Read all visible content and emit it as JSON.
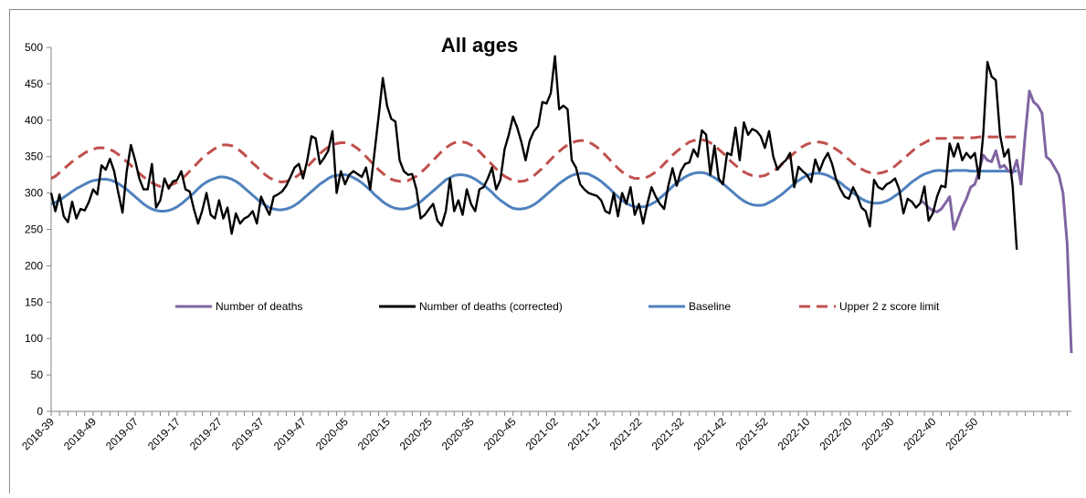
{
  "chart_data": {
    "type": "line",
    "title": "All ages",
    "xlabel": "",
    "ylabel": "",
    "ylim": [
      0,
      500
    ],
    "yticks": [
      0,
      50,
      100,
      150,
      200,
      250,
      300,
      350,
      400,
      450,
      500
    ],
    "grid": false,
    "legend_placement": "center",
    "xtick_labels": [
      "2018-39",
      "2018-49",
      "2019-07",
      "2019-17",
      "2019-27",
      "2019-37",
      "2019-47",
      "2020-05",
      "2020-15",
      "2020-25",
      "2020-35",
      "2020-45",
      "2021-02",
      "2021-12",
      "2021-22",
      "2021-32",
      "2021-42",
      "2021-52",
      "2022-10",
      "2022-20",
      "2022-30",
      "2022-40",
      "2022-50"
    ],
    "series": [
      {
        "name": "Number of deaths",
        "color": "#8064a2",
        "style": "solid",
        "start_index": 207,
        "values": [
          290,
          286,
          280,
          276,
          274,
          278,
          286,
          295,
          250,
          265,
          280,
          292,
          308,
          312,
          330,
          352,
          345,
          343,
          358,
          335,
          338,
          330,
          328,
          345,
          312,
          380,
          440,
          425,
          420,
          410,
          350,
          345,
          335,
          325,
          300,
          230,
          80
        ]
      },
      {
        "name": "Number of deaths (corrected)",
        "color": "#000000",
        "style": "solid",
        "start_index": 0,
        "values": [
          300,
          275,
          298,
          268,
          260,
          288,
          265,
          278,
          276,
          288,
          305,
          298,
          338,
          332,
          347,
          330,
          300,
          273,
          330,
          366,
          345,
          320,
          305,
          305,
          340,
          280,
          290,
          320,
          306,
          316,
          318,
          330,
          305,
          302,
          278,
          258,
          276,
          300,
          270,
          265,
          290,
          265,
          280,
          244,
          272,
          258,
          265,
          268,
          275,
          258,
          295,
          282,
          270,
          295,
          298,
          302,
          310,
          322,
          335,
          340,
          320,
          345,
          378,
          375,
          340,
          348,
          358,
          385,
          300,
          330,
          312,
          325,
          330,
          326,
          322,
          335,
          305,
          355,
          405,
          458,
          420,
          402,
          398,
          345,
          330,
          325,
          326,
          305,
          265,
          270,
          278,
          285,
          262,
          255,
          275,
          320,
          275,
          290,
          270,
          305,
          285,
          275,
          305,
          308,
          320,
          335,
          305,
          318,
          360,
          380,
          405,
          390,
          370,
          345,
          372,
          385,
          392,
          425,
          423,
          437,
          488,
          415,
          420,
          415,
          345,
          335,
          312,
          305,
          300,
          298,
          296,
          290,
          275,
          272,
          300,
          268,
          300,
          285,
          308,
          270,
          285,
          258,
          285,
          308,
          295,
          285,
          278,
          310,
          334,
          310,
          330,
          340,
          342,
          360,
          350,
          386,
          380,
          325,
          365,
          320,
          312,
          355,
          352,
          390,
          345,
          397,
          380,
          388,
          385,
          378,
          362,
          385,
          350,
          332,
          340,
          345,
          355,
          308,
          336,
          330,
          325,
          315,
          346,
          330,
          345,
          355,
          340,
          318,
          305,
          295,
          292,
          308,
          296,
          280,
          275,
          254,
          318,
          308,
          305,
          312,
          315,
          320,
          305,
          272,
          292,
          288,
          280,
          286,
          309,
          262,
          272,
          295,
          310,
          308,
          368,
          350,
          368,
          345,
          355,
          348,
          355,
          320,
          380,
          480,
          460,
          455,
          380,
          350,
          360,
          310,
          222
        ]
      },
      {
        "name": "Baseline",
        "color": "#4f81bd",
        "style": "solid",
        "start_index": 0,
        "values": [
          285,
          287,
          290,
          294,
          298,
          302,
          306,
          309,
          312,
          315,
          317,
          318,
          319,
          319,
          318,
          316,
          313,
          309,
          305,
          300,
          295,
          290,
          285,
          281,
          278,
          276,
          275,
          275,
          276,
          278,
          281,
          285,
          290,
          295,
          300,
          306,
          311,
          315,
          318,
          320,
          322,
          322,
          321,
          319,
          316,
          312,
          307,
          302,
          297,
          292,
          287,
          283,
          280,
          278,
          277,
          277,
          278,
          280,
          283,
          287,
          292,
          297,
          302,
          307,
          312,
          316,
          320,
          323,
          324,
          325,
          325,
          324,
          321,
          318,
          314,
          309,
          304,
          298,
          293,
          288,
          284,
          281,
          279,
          278,
          278,
          279,
          281,
          284,
          288,
          293,
          298,
          303,
          308,
          313,
          318,
          321,
          324,
          325,
          325,
          324,
          322,
          319,
          315,
          311,
          306,
          301,
          295,
          290,
          286,
          282,
          279,
          278,
          278,
          279,
          281,
          284,
          288,
          293,
          298,
          303,
          308,
          313,
          317,
          321,
          324,
          326,
          327,
          327,
          326,
          323,
          320,
          316,
          311,
          306,
          300,
          295,
          290,
          286,
          283,
          281,
          281,
          281,
          282,
          285,
          288,
          293,
          298,
          303,
          309,
          314,
          318,
          322,
          325,
          327,
          328,
          328,
          327,
          324,
          321,
          317,
          313,
          308,
          303,
          298,
          293,
          289,
          286,
          284,
          283,
          283,
          284,
          287,
          290,
          294,
          298,
          303,
          308,
          313,
          317,
          321,
          324,
          326,
          327,
          327,
          326,
          324,
          321,
          318,
          314,
          309,
          305,
          300,
          296,
          292,
          289,
          287,
          286,
          286,
          287,
          289,
          292,
          296,
          300,
          305,
          310,
          315,
          319,
          323,
          326,
          328,
          330,
          331,
          331,
          330,
          330,
          331,
          331,
          331,
          331,
          330,
          330,
          330,
          330,
          330,
          330,
          330,
          330,
          330,
          330,
          330,
          330
        ]
      },
      {
        "name": "Upper 2 z score limit",
        "color": "#c0504d",
        "style": "dashed",
        "start_index": 0,
        "values": [
          320,
          323,
          328,
          333,
          338,
          343,
          347,
          351,
          355,
          358,
          360,
          362,
          362,
          362,
          360,
          357,
          353,
          348,
          343,
          338,
          332,
          327,
          322,
          318,
          314,
          311,
          309,
          309,
          310,
          312,
          315,
          319,
          324,
          330,
          336,
          342,
          348,
          353,
          357,
          361,
          364,
          366,
          366,
          365,
          362,
          358,
          353,
          347,
          341,
          336,
          330,
          325,
          321,
          318,
          316,
          315,
          316,
          318,
          321,
          325,
          330,
          336,
          342,
          348,
          354,
          359,
          363,
          366,
          368,
          369,
          369,
          368,
          365,
          361,
          356,
          350,
          344,
          338,
          332,
          327,
          322,
          319,
          317,
          316,
          316,
          317,
          320,
          323,
          328,
          333,
          339,
          345,
          351,
          357,
          362,
          366,
          369,
          370,
          370,
          369,
          366,
          362,
          357,
          351,
          345,
          339,
          333,
          328,
          323,
          320,
          317,
          316,
          316,
          317,
          320,
          324,
          329,
          334,
          340,
          346,
          352,
          357,
          362,
          366,
          369,
          371,
          372,
          372,
          370,
          367,
          363,
          358,
          352,
          346,
          340,
          334,
          329,
          325,
          322,
          320,
          320,
          320,
          322,
          325,
          329,
          334,
          340,
          346,
          352,
          357,
          362,
          366,
          370,
          372,
          373,
          373,
          372,
          369,
          365,
          360,
          355,
          349,
          343,
          338,
          333,
          329,
          326,
          324,
          323,
          323,
          324,
          327,
          330,
          334,
          339,
          344,
          350,
          355,
          360,
          364,
          367,
          369,
          370,
          370,
          369,
          367,
          364,
          360,
          356,
          351,
          346,
          341,
          337,
          333,
          330,
          328,
          327,
          327,
          328,
          330,
          333,
          337,
          342,
          347,
          352,
          357,
          362,
          366,
          369,
          372,
          374,
          375,
          375,
          375,
          375,
          376,
          376,
          376,
          376,
          376,
          376,
          377,
          377,
          377,
          377,
          377,
          377,
          377,
          377,
          377,
          377
        ]
      }
    ]
  }
}
